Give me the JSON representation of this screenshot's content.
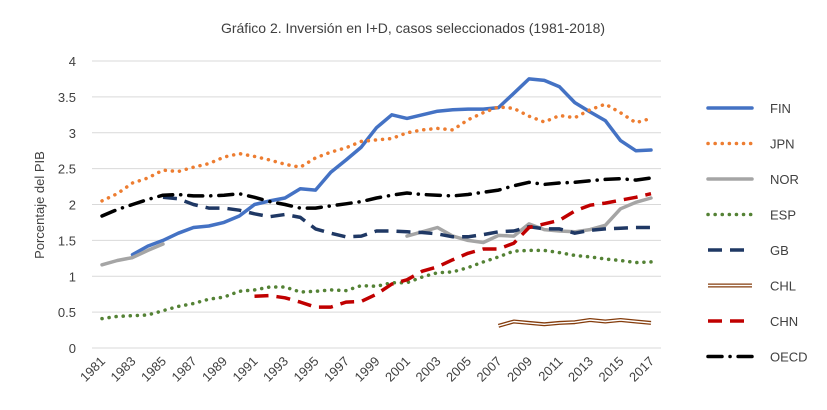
{
  "chart_data": {
    "type": "line",
    "title": "Gráfico 2. Inversión en I+D, casos seleccionados (1981-2018)",
    "xlabel": "",
    "ylabel": "Porcentaje del PIB",
    "ylim": [
      0,
      4
    ],
    "yticks": [
      "0",
      "0.5",
      "1",
      "1.5",
      "2",
      "2.5",
      "3",
      "3.5",
      "4"
    ],
    "xticks": [
      "1981",
      "1983",
      "1985",
      "1987",
      "1989",
      "1991",
      "1993",
      "1995",
      "1997",
      "1999",
      "2001",
      "2003",
      "2005",
      "2007",
      "2009",
      "2011",
      "2013",
      "2015",
      "2017"
    ],
    "grid": "horizontal",
    "legend_position": "right",
    "series": [
      {
        "name": "FIN",
        "color": "#4472C4",
        "style": "solid",
        "points": [
          [
            1983,
            1.3
          ],
          [
            1984,
            1.42
          ],
          [
            1985,
            1.5
          ],
          [
            1986,
            1.6
          ],
          [
            1987,
            1.68
          ],
          [
            1988,
            1.7
          ],
          [
            1989,
            1.75
          ],
          [
            1990,
            1.84
          ],
          [
            1991,
            2.0
          ],
          [
            1992,
            2.05
          ],
          [
            1993,
            2.09
          ],
          [
            1994,
            2.22
          ],
          [
            1995,
            2.2
          ],
          [
            1996,
            2.45
          ],
          [
            1997,
            2.62
          ],
          [
            1998,
            2.8
          ],
          [
            1999,
            3.07
          ],
          [
            2000,
            3.25
          ],
          [
            2001,
            3.2
          ],
          [
            2002,
            3.25
          ],
          [
            2003,
            3.3
          ],
          [
            2004,
            3.32
          ],
          [
            2005,
            3.33
          ],
          [
            2006,
            3.33
          ],
          [
            2007,
            3.35
          ],
          [
            2008,
            3.55
          ],
          [
            2009,
            3.75
          ],
          [
            2010,
            3.73
          ],
          [
            2011,
            3.64
          ],
          [
            2012,
            3.42
          ],
          [
            2013,
            3.29
          ],
          [
            2014,
            3.17
          ],
          [
            2015,
            2.89
          ],
          [
            2016,
            2.75
          ],
          [
            2017,
            2.76
          ]
        ]
      },
      {
        "name": "JPN",
        "color": "#ED7D31",
        "style": "dotted",
        "points": [
          [
            1981,
            2.05
          ],
          [
            1982,
            2.15
          ],
          [
            1983,
            2.3
          ],
          [
            1984,
            2.37
          ],
          [
            1985,
            2.48
          ],
          [
            1986,
            2.46
          ],
          [
            1987,
            2.52
          ],
          [
            1988,
            2.57
          ],
          [
            1989,
            2.66
          ],
          [
            1990,
            2.71
          ],
          [
            1991,
            2.67
          ],
          [
            1992,
            2.62
          ],
          [
            1993,
            2.56
          ],
          [
            1994,
            2.52
          ],
          [
            1995,
            2.65
          ],
          [
            1996,
            2.73
          ],
          [
            1997,
            2.79
          ],
          [
            1998,
            2.88
          ],
          [
            1999,
            2.9
          ],
          [
            2000,
            2.92
          ],
          [
            2001,
            3.0
          ],
          [
            2002,
            3.04
          ],
          [
            2003,
            3.06
          ],
          [
            2004,
            3.04
          ],
          [
            2005,
            3.18
          ],
          [
            2006,
            3.28
          ],
          [
            2007,
            3.36
          ],
          [
            2008,
            3.34
          ],
          [
            2009,
            3.23
          ],
          [
            2010,
            3.15
          ],
          [
            2011,
            3.24
          ],
          [
            2012,
            3.21
          ],
          [
            2013,
            3.32
          ],
          [
            2014,
            3.4
          ],
          [
            2015,
            3.28
          ],
          [
            2016,
            3.14
          ],
          [
            2017,
            3.2
          ]
        ]
      },
      {
        "name": "NOR",
        "color": "#A5A5A5",
        "style": "solid",
        "points": [
          [
            1981,
            1.16
          ],
          [
            1982,
            1.22
          ],
          [
            1983,
            1.26
          ],
          [
            1984,
            1.36
          ],
          [
            1985,
            1.45
          ],
          null,
          [
            2001,
            1.56
          ],
          [
            2002,
            1.62
          ],
          [
            2003,
            1.68
          ],
          [
            2004,
            1.56
          ],
          [
            2005,
            1.5
          ],
          [
            2006,
            1.47
          ],
          [
            2007,
            1.57
          ],
          [
            2008,
            1.56
          ],
          [
            2009,
            1.73
          ],
          [
            2010,
            1.65
          ],
          [
            2011,
            1.63
          ],
          [
            2012,
            1.62
          ],
          [
            2013,
            1.65
          ],
          [
            2014,
            1.71
          ],
          [
            2015,
            1.94
          ],
          [
            2016,
            2.03
          ],
          [
            2017,
            2.09
          ]
        ]
      },
      {
        "name": "ESP",
        "color": "#548235",
        "style": "dotted",
        "points": [
          [
            1981,
            0.41
          ],
          [
            1982,
            0.44
          ],
          [
            1983,
            0.45
          ],
          [
            1984,
            0.46
          ],
          [
            1985,
            0.52
          ],
          [
            1986,
            0.58
          ],
          [
            1987,
            0.62
          ],
          [
            1988,
            0.68
          ],
          [
            1989,
            0.71
          ],
          [
            1990,
            0.79
          ],
          [
            1991,
            0.81
          ],
          [
            1992,
            0.85
          ],
          [
            1993,
            0.85
          ],
          [
            1994,
            0.78
          ],
          [
            1995,
            0.79
          ],
          [
            1996,
            0.81
          ],
          [
            1997,
            0.8
          ],
          [
            1998,
            0.87
          ],
          [
            1999,
            0.86
          ],
          [
            2000,
            0.91
          ],
          [
            2001,
            0.91
          ],
          [
            2002,
            0.99
          ],
          [
            2003,
            1.05
          ],
          [
            2004,
            1.06
          ],
          [
            2005,
            1.12
          ],
          [
            2006,
            1.2
          ],
          [
            2007,
            1.27
          ],
          [
            2008,
            1.35
          ],
          [
            2009,
            1.36
          ],
          [
            2010,
            1.36
          ],
          [
            2011,
            1.33
          ],
          [
            2012,
            1.29
          ],
          [
            2013,
            1.27
          ],
          [
            2014,
            1.24
          ],
          [
            2015,
            1.22
          ],
          [
            2016,
            1.19
          ],
          [
            2017,
            1.2
          ]
        ]
      },
      {
        "name": "GB",
        "color": "#1F3864",
        "style": "dashed",
        "points": [
          [
            1985,
            2.1
          ],
          [
            1986,
            2.08
          ],
          [
            1987,
            2.0
          ],
          [
            1988,
            1.95
          ],
          [
            1989,
            1.95
          ],
          [
            1990,
            1.92
          ],
          [
            1991,
            1.87
          ],
          [
            1992,
            1.83
          ],
          [
            1993,
            1.86
          ],
          [
            1994,
            1.82
          ],
          [
            1995,
            1.66
          ],
          [
            1996,
            1.6
          ],
          [
            1997,
            1.55
          ],
          [
            1998,
            1.56
          ],
          [
            1999,
            1.63
          ],
          [
            2000,
            1.63
          ],
          [
            2001,
            1.62
          ],
          [
            2002,
            1.61
          ],
          [
            2003,
            1.59
          ],
          [
            2004,
            1.55
          ],
          [
            2005,
            1.55
          ],
          [
            2006,
            1.58
          ],
          [
            2007,
            1.62
          ],
          [
            2008,
            1.63
          ],
          [
            2009,
            1.69
          ],
          [
            2010,
            1.66
          ],
          [
            2011,
            1.66
          ],
          [
            2012,
            1.6
          ],
          [
            2013,
            1.64
          ],
          [
            2014,
            1.66
          ],
          [
            2015,
            1.67
          ],
          [
            2016,
            1.68
          ],
          [
            2017,
            1.68
          ]
        ]
      },
      {
        "name": "CHL",
        "color": "#843C0C",
        "style": "double",
        "points": [
          [
            2007,
            0.31
          ],
          [
            2008,
            0.37
          ],
          [
            2009,
            0.35
          ],
          [
            2010,
            0.33
          ],
          [
            2011,
            0.35
          ],
          [
            2012,
            0.36
          ],
          [
            2013,
            0.39
          ],
          [
            2014,
            0.37
          ],
          [
            2015,
            0.39
          ],
          [
            2016,
            0.37
          ],
          [
            2017,
            0.35
          ]
        ]
      },
      {
        "name": "CHN",
        "color": "#C00000",
        "style": "dashed",
        "points": [
          [
            1991,
            0.72
          ],
          [
            1992,
            0.73
          ],
          [
            1993,
            0.7
          ],
          [
            1994,
            0.64
          ],
          [
            1995,
            0.57
          ],
          [
            1996,
            0.57
          ],
          [
            1997,
            0.64
          ],
          [
            1998,
            0.65
          ],
          [
            1999,
            0.75
          ],
          [
            2000,
            0.89
          ],
          [
            2001,
            0.95
          ],
          [
            2002,
            1.07
          ],
          [
            2003,
            1.13
          ],
          [
            2004,
            1.23
          ],
          [
            2005,
            1.32
          ],
          [
            2006,
            1.38
          ],
          [
            2007,
            1.38
          ],
          [
            2008,
            1.46
          ],
          [
            2009,
            1.68
          ],
          [
            2010,
            1.73
          ],
          [
            2011,
            1.78
          ],
          [
            2012,
            1.91
          ],
          [
            2013,
            1.99
          ],
          [
            2014,
            2.02
          ],
          [
            2015,
            2.06
          ],
          [
            2016,
            2.1
          ],
          [
            2017,
            2.15
          ]
        ]
      },
      {
        "name": "OECD",
        "color": "#000000",
        "style": "dashdot",
        "points": [
          [
            1981,
            1.84
          ],
          [
            1982,
            1.93
          ],
          [
            1983,
            2.0
          ],
          [
            1984,
            2.07
          ],
          [
            1985,
            2.13
          ],
          [
            1986,
            2.14
          ],
          [
            1987,
            2.12
          ],
          [
            1988,
            2.12
          ],
          [
            1989,
            2.13
          ],
          [
            1990,
            2.15
          ],
          [
            1991,
            2.1
          ],
          [
            1992,
            2.04
          ],
          [
            1993,
            2.0
          ],
          [
            1994,
            1.95
          ],
          [
            1995,
            1.95
          ],
          [
            1996,
            1.98
          ],
          [
            1997,
            2.01
          ],
          [
            1998,
            2.04
          ],
          [
            1999,
            2.09
          ],
          [
            2000,
            2.13
          ],
          [
            2001,
            2.16
          ],
          [
            2002,
            2.14
          ],
          [
            2003,
            2.13
          ],
          [
            2004,
            2.12
          ],
          [
            2005,
            2.14
          ],
          [
            2006,
            2.17
          ],
          [
            2007,
            2.2
          ],
          [
            2008,
            2.26
          ],
          [
            2009,
            2.31
          ],
          [
            2010,
            2.28
          ],
          [
            2011,
            2.3
          ],
          [
            2012,
            2.31
          ],
          [
            2013,
            2.33
          ],
          [
            2014,
            2.35
          ],
          [
            2015,
            2.36
          ],
          [
            2016,
            2.34
          ],
          [
            2017,
            2.37
          ]
        ]
      }
    ]
  }
}
